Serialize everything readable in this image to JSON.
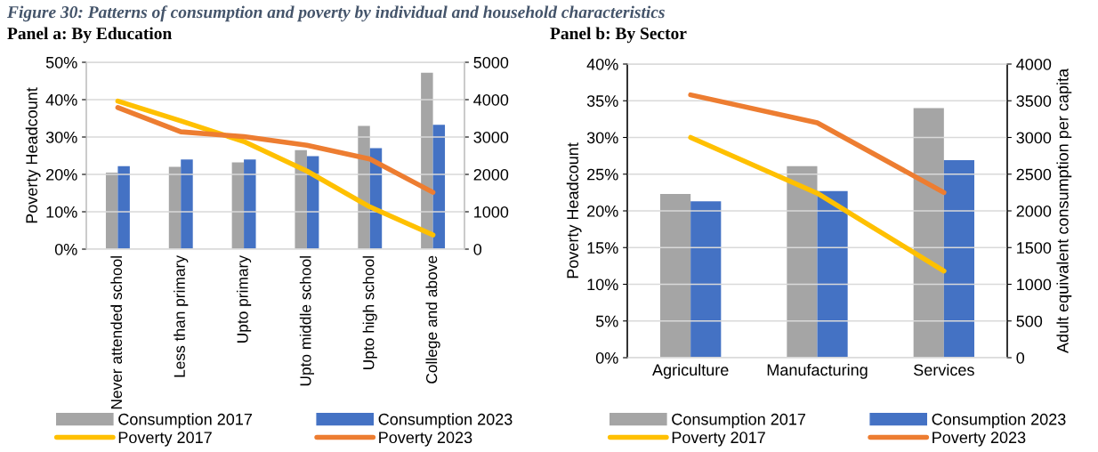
{
  "chart_data": [
    {
      "type": "bar",
      "title": "Panel a: By Education",
      "ylabel": "Poverty Headcount",
      "annotations": [
        "Figure 30: Patterns of consumption and poverty by individual and household characteristics"
      ],
      "categories": [
        "Never attended school",
        "Less than primary",
        "Upto primary",
        "Upto middle school",
        "Upto high school",
        "College and above"
      ],
      "series": [
        {
          "name": "Consumption 2017",
          "axis": "y2",
          "color": "#a5a5a5",
          "values": [
            2050,
            2200,
            2320,
            2650,
            3300,
            4720
          ]
        },
        {
          "name": "Consumption 2023",
          "axis": "y2",
          "color": "#4472c4",
          "values": [
            2220,
            2400,
            2400,
            2490,
            2700,
            3330
          ]
        },
        {
          "name": "Poverty 2017",
          "type": "line",
          "axis": "y",
          "color": "#ffc000",
          "values": [
            39.6,
            34.3,
            28.8,
            20.9,
            11.3,
            3.8
          ]
        },
        {
          "name": "Poverty 2023",
          "type": "line",
          "axis": "y",
          "color": "#ed7d31",
          "values": [
            37.9,
            31.4,
            30.1,
            27.8,
            24.1,
            15.2
          ]
        }
      ],
      "ylim": [
        0,
        50
      ],
      "yticks": [
        {
          "value": 0,
          "label": "0%"
        },
        {
          "value": 10,
          "label": "10%"
        },
        {
          "value": 20,
          "label": "20%"
        },
        {
          "value": 30,
          "label": "30%"
        },
        {
          "value": 40,
          "label": "40%"
        },
        {
          "value": 50,
          "label": "50%"
        }
      ],
      "y2lim": [
        0,
        5000
      ],
      "y2ticks": [
        0,
        1000,
        2000,
        3000,
        4000,
        5000
      ],
      "grid": "y",
      "legend": "bottom",
      "marker": "none",
      "line_style": "solid"
    },
    {
      "type": "bar",
      "title": "Panel b: By Sector",
      "ylabel": "Poverty Headcount",
      "y2label": "Adult equivalent consumption per capita",
      "categories": [
        "Agriculture",
        "Manufacturing",
        "Services"
      ],
      "series": [
        {
          "name": "Consumption 2017",
          "axis": "y2",
          "color": "#a5a5a5",
          "values": [
            2230,
            2610,
            3400
          ]
        },
        {
          "name": "Consumption 2023",
          "axis": "y2",
          "color": "#4472c4",
          "values": [
            2130,
            2270,
            2690
          ]
        },
        {
          "name": "Poverty 2017",
          "type": "line",
          "axis": "y",
          "color": "#ffc000",
          "values": [
            30.0,
            22.4,
            11.8
          ]
        },
        {
          "name": "Poverty 2023",
          "type": "line",
          "axis": "y",
          "color": "#ed7d31",
          "values": [
            35.8,
            32.0,
            22.5
          ]
        }
      ],
      "ylim": [
        0,
        40
      ],
      "yticks": [
        {
          "value": 0,
          "label": "0%"
        },
        {
          "value": 5,
          "label": "5%"
        },
        {
          "value": 10,
          "label": "10%"
        },
        {
          "value": 15,
          "label": "15%"
        },
        {
          "value": 20,
          "label": "20%"
        },
        {
          "value": 25,
          "label": "25%"
        },
        {
          "value": 30,
          "label": "30%"
        },
        {
          "value": 35,
          "label": "35%"
        },
        {
          "value": 40,
          "label": "40%"
        }
      ],
      "y2lim": [
        0,
        4000
      ],
      "y2ticks": [
        0,
        500,
        1000,
        1500,
        2000,
        2500,
        3000,
        3500,
        4000
      ],
      "grid": "y",
      "legend": "bottom",
      "marker": "none",
      "line_style": "solid"
    }
  ]
}
